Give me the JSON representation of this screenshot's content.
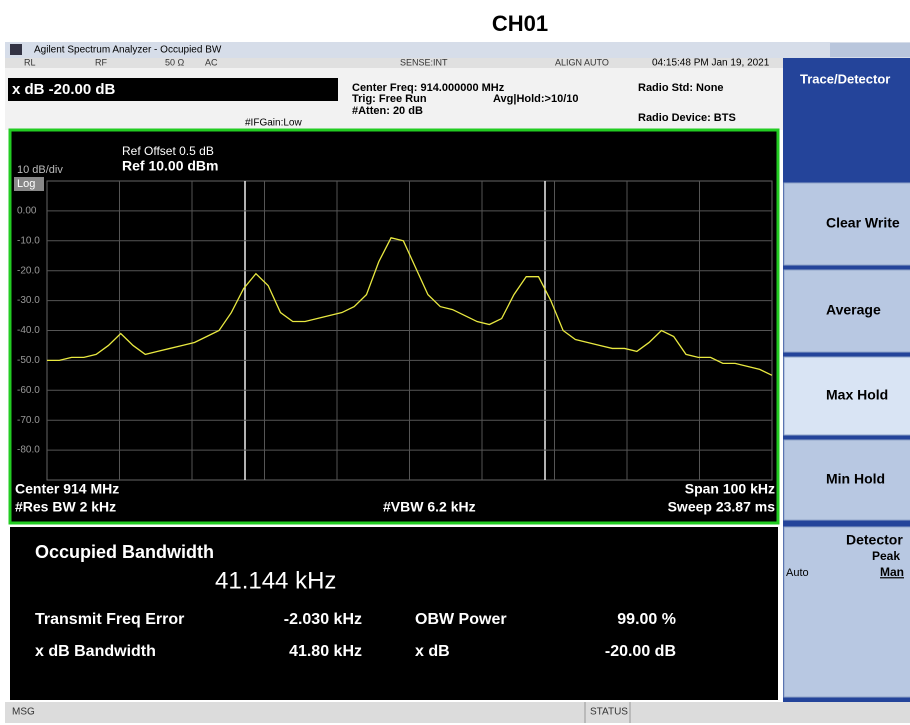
{
  "page_title": "CH01",
  "window_title": "Agilent Spectrum Analyzer - Occupied BW",
  "status": {
    "rl": "RL",
    "rf": "RF",
    "impedance": "50 Ω",
    "coupling": "AC",
    "sense": "SENSE:INT",
    "align": "ALIGN AUTO",
    "time": "04:15:48 PM Jan 19, 2021",
    "xdb": "x dB -20.00 dB",
    "center_freq": "Center Freq: 914.000000 MHz",
    "trig": "Trig: Free Run",
    "avg": "Avg|Hold:>10/10",
    "atten": "#Atten: 20 dB",
    "ifgain": "#IFGain:Low",
    "radio_std": "Radio Std: None",
    "radio_device": "Radio Device: BTS"
  },
  "plot": {
    "scale": "10 dB/div",
    "log": "Log",
    "ref_offset": "Ref Offset 0.5 dB",
    "ref": "Ref 10.00 dBm",
    "ylim": [
      -90,
      10
    ],
    "yticks": [
      {
        "value": 0,
        "label": "0.00"
      },
      {
        "value": -10,
        "label": "-10.0"
      },
      {
        "value": -20,
        "label": "-20.0"
      },
      {
        "value": -30,
        "label": "-30.0"
      },
      {
        "value": -40,
        "label": "-40.0"
      },
      {
        "value": -50,
        "label": "-50.0"
      },
      {
        "value": -60,
        "label": "-60.0"
      },
      {
        "value": -70,
        "label": "-70.0"
      },
      {
        "value": -80,
        "label": "-80.0"
      }
    ],
    "center": "Center  914 MHz",
    "res_bw": "#Res BW  2 kHz",
    "vbw": "#VBW  6.2 kHz",
    "span": "Span 100 kHz",
    "sweep": "Sweep  23.87 ms",
    "trace": {
      "color": "#e8e840",
      "values": [
        -50,
        -50,
        -49,
        -49,
        -48,
        -45,
        -41,
        -45,
        -48,
        -47,
        -46,
        -45,
        -44,
        -42,
        -40,
        -34,
        -26,
        -21,
        -25,
        -34,
        -37,
        -37,
        -36,
        -35,
        -34,
        -32,
        -28,
        -17,
        -9,
        -10,
        -19,
        -28,
        -32,
        -33,
        -35,
        -37,
        -38,
        -36,
        -28,
        -22,
        -22,
        -30,
        -40,
        -43,
        -44,
        -45,
        -46,
        -46,
        -47,
        -44,
        -40,
        -42,
        -48,
        -49,
        -49,
        -51,
        -51,
        -52,
        -53,
        -55
      ]
    }
  },
  "results": {
    "title": "Occupied Bandwidth",
    "obw": "41.144 kHz",
    "rows": [
      [
        "Transmit Freq Error",
        "-2.030 kHz",
        "OBW Power",
        "99.00 %"
      ],
      [
        "x dB Bandwidth",
        "41.80 kHz",
        "x dB",
        "-20.00 dB"
      ]
    ]
  },
  "menu": {
    "title": "Trace/Detector",
    "items": [
      "Clear Write",
      "Average",
      "Max Hold",
      "Min Hold"
    ],
    "detector": {
      "label": "Detector",
      "value": "Peak",
      "auto": "Auto",
      "man": "Man"
    }
  },
  "footer": {
    "msg": "MSG",
    "status": "STATUS"
  }
}
